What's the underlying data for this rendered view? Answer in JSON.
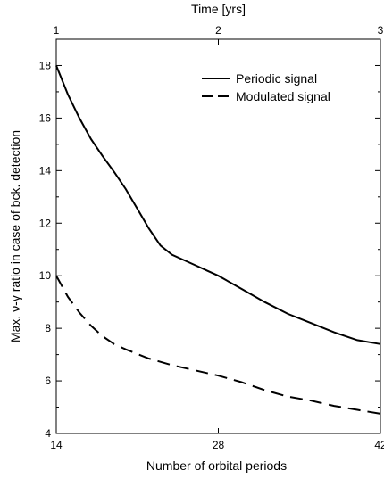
{
  "chart_data": {
    "type": "line",
    "xlabel": "Number of orbital periods",
    "ylabel": "Max. ν-γ ratio in case of bck. detection",
    "top_axis_label": "Time [yrs]",
    "xlim": [
      14,
      42
    ],
    "ylim": [
      4,
      19
    ],
    "x_ticks": [
      14,
      28,
      42
    ],
    "y_ticks": [
      4,
      6,
      8,
      10,
      12,
      14,
      16,
      18
    ],
    "top_axis": {
      "ticks": [
        1,
        2,
        3
      ],
      "range": [
        1,
        3
      ]
    },
    "legend_position": "top-right",
    "grid": false,
    "series": [
      {
        "name": "Periodic signal",
        "style": "solid",
        "color": "#000000",
        "x": [
          14,
          15,
          16,
          17,
          18,
          19,
          20,
          21,
          22,
          23,
          24,
          25,
          26,
          27,
          28,
          30,
          32,
          34,
          36,
          38,
          40,
          42
        ],
        "y": [
          18.0,
          16.9,
          16.0,
          15.2,
          14.55,
          13.95,
          13.3,
          12.55,
          11.8,
          11.15,
          10.8,
          10.6,
          10.4,
          10.2,
          10.0,
          9.5,
          9.0,
          8.55,
          8.2,
          7.85,
          7.55,
          7.4
        ]
      },
      {
        "name": "Modulated signal",
        "style": "dashed",
        "color": "#000000",
        "x": [
          14,
          15,
          16,
          17,
          18,
          19,
          20,
          22,
          24,
          26,
          28,
          30,
          32,
          34,
          36,
          38,
          40,
          42
        ],
        "y": [
          10.0,
          9.2,
          8.6,
          8.1,
          7.7,
          7.4,
          7.2,
          6.85,
          6.6,
          6.4,
          6.2,
          5.95,
          5.65,
          5.4,
          5.25,
          5.05,
          4.9,
          4.75
        ]
      }
    ]
  }
}
